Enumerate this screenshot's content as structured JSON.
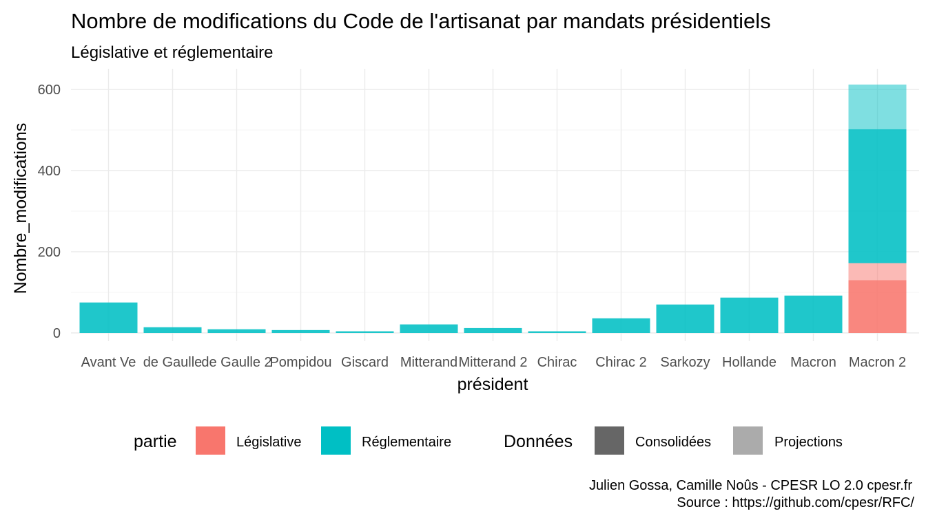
{
  "chart_data": {
    "type": "bar",
    "title": "Nombre de modifications du Code de l'artisanat par mandats présidentiels",
    "subtitle": "Législative et réglementaire",
    "xlabel": "président",
    "ylabel": "Nombre_modifications",
    "categories": [
      "Avant Ve",
      "de Gaulle",
      "de Gaulle 2",
      "Pompidou",
      "Giscard",
      "Mitterand",
      "Mitterand 2",
      "Chirac",
      "Chirac 2",
      "Sarkozy",
      "Hollande",
      "Macron",
      "Macron 2"
    ],
    "ylim": [
      0,
      620
    ],
    "yticks": [
      0,
      200,
      400,
      600
    ],
    "stacked": true,
    "series": [
      {
        "name": "Législative",
        "data_kind": "Consolidées",
        "color": "#F8766D",
        "values": [
          0,
          0,
          0,
          0,
          0,
          0,
          0,
          0,
          0,
          0,
          0,
          0,
          130
        ]
      },
      {
        "name": "Législative",
        "data_kind": "Projections",
        "color": "#F8766D",
        "opacity": 0.5,
        "values": [
          0,
          0,
          0,
          0,
          0,
          0,
          0,
          0,
          0,
          0,
          0,
          0,
          42
        ]
      },
      {
        "name": "Réglementaire",
        "data_kind": "Consolidées",
        "color": "#00BFC4",
        "values": [
          75,
          14,
          9,
          7,
          4,
          21,
          12,
          4,
          36,
          70,
          87,
          92,
          330
        ]
      },
      {
        "name": "Réglementaire",
        "data_kind": "Projections",
        "color": "#00BFC4",
        "opacity": 0.5,
        "values": [
          0,
          0,
          0,
          0,
          0,
          0,
          0,
          0,
          0,
          0,
          0,
          0,
          110
        ]
      }
    ],
    "grid": true,
    "legend_position": "bottom",
    "legend": {
      "partie": {
        "title": "partie",
        "items": [
          {
            "label": "Législative",
            "color": "#F8766D"
          },
          {
            "label": "Réglementaire",
            "color": "#00BFC4"
          }
        ]
      },
      "donnees": {
        "title": "Données",
        "items": [
          {
            "label": "Consolidées",
            "color": "#666666"
          },
          {
            "label": "Projections",
            "color": "#ababab"
          }
        ]
      }
    },
    "caption": [
      "Julien Gossa, Camille Noûs - CPESR LO 2.0 cpesr.fr",
      "Source : https://github.com/cpesr/RFC/"
    ]
  }
}
